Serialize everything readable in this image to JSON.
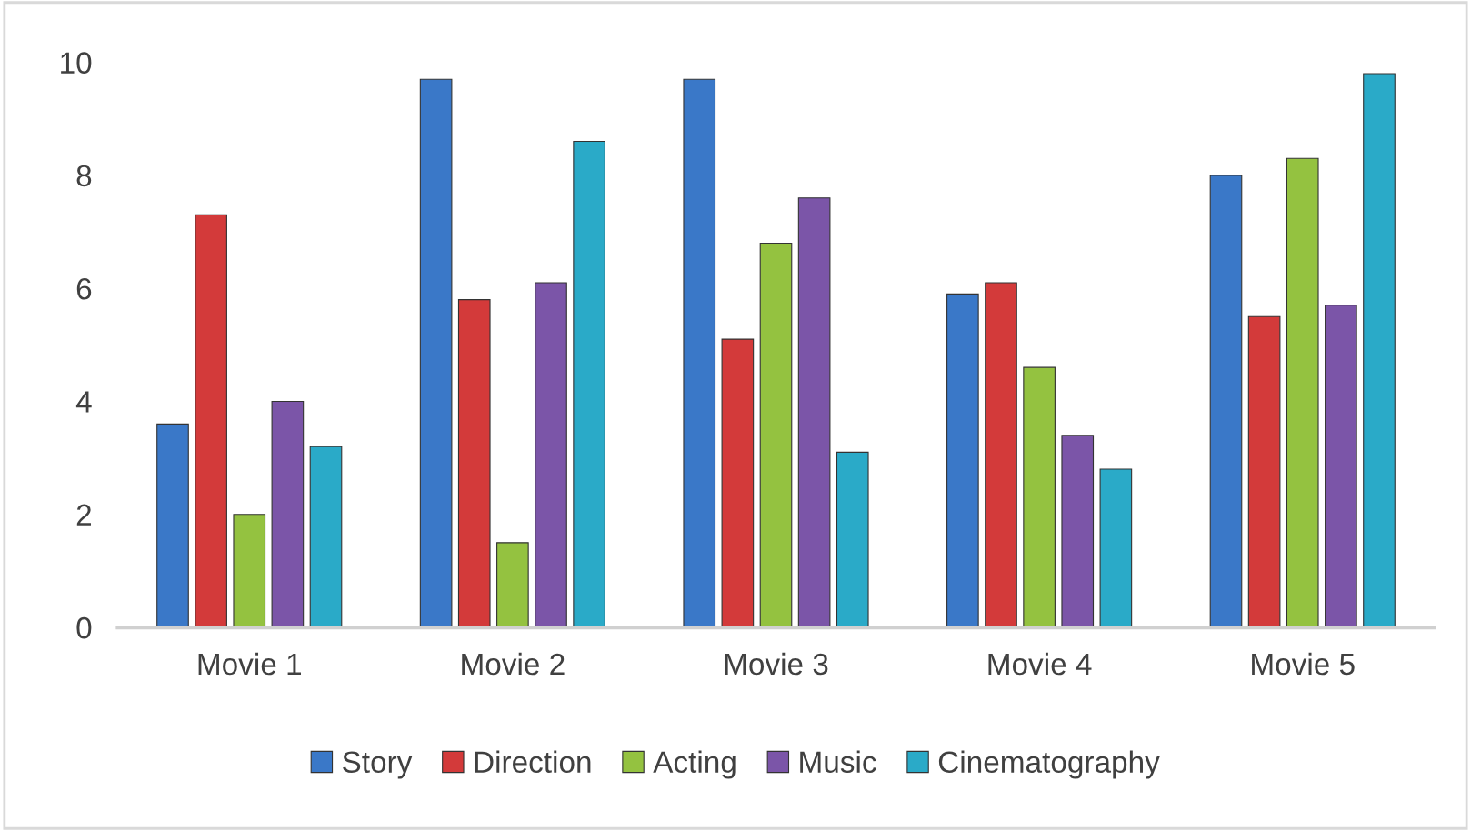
{
  "chart_data": {
    "type": "bar",
    "categories": [
      "Movie 1",
      "Movie 2",
      "Movie 3",
      "Movie 4",
      "Movie 5"
    ],
    "series": [
      {
        "name": "Story",
        "color": "#3a78c8",
        "values": [
          3.6,
          9.7,
          9.7,
          5.9,
          8.0
        ]
      },
      {
        "name": "Direction",
        "color": "#d33a3a",
        "values": [
          7.3,
          5.8,
          5.1,
          6.1,
          5.5
        ]
      },
      {
        "name": "Acting",
        "color": "#94c240",
        "values": [
          2.0,
          1.5,
          6.8,
          4.6,
          8.3
        ]
      },
      {
        "name": "Music",
        "color": "#7b55a8",
        "values": [
          4.0,
          6.1,
          7.6,
          3.4,
          5.7
        ]
      },
      {
        "name": "Cinematography",
        "color": "#2aaac8",
        "values": [
          3.2,
          8.6,
          3.1,
          2.8,
          9.8
        ]
      }
    ],
    "ylim": [
      0,
      10
    ],
    "yticks": [
      0,
      2,
      4,
      6,
      8,
      10
    ],
    "grid": false,
    "legend": "bottom"
  }
}
